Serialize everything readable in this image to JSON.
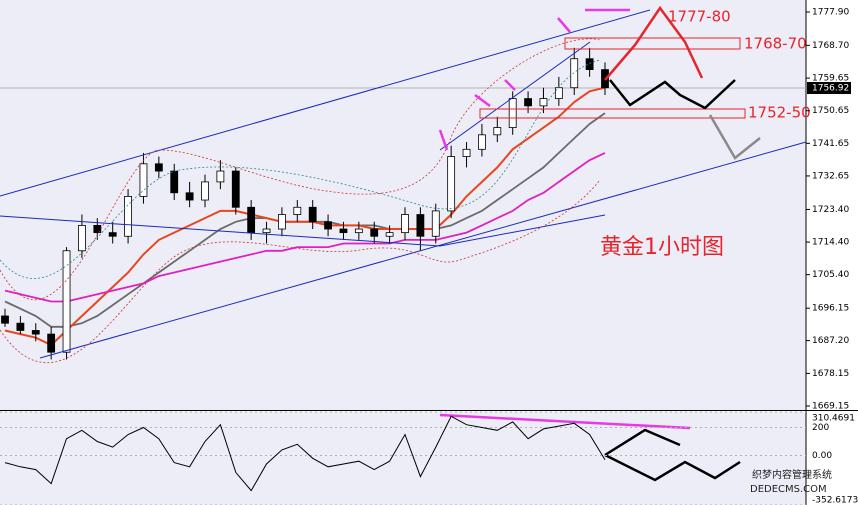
{
  "chart_data": {
    "type": "candlestick",
    "title": "黄金1小时图",
    "ylim": [
      1669.15,
      1777.9
    ],
    "yticks": [
      {
        "value": 1777.9,
        "label": "1777.90"
      },
      {
        "value": 1768.7,
        "label": "1768.70"
      },
      1759.65,
      {
        "value": 1750.65,
        "label": "1750.65"
      },
      {
        "value": 1741.65,
        "label": "1741.65"
      },
      {
        "value": 1732.65,
        "label": "1732.65"
      },
      {
        "value": 1723.4,
        "label": "1723.40"
      },
      {
        "value": 1714.4,
        "label": "1714.40"
      },
      {
        "value": 1705.4,
        "label": "1705.40"
      },
      1696.15,
      {
        "value": 1687.2,
        "label": "1687.20"
      },
      1678.15,
      1669.15
    ],
    "last_price": 1756.92,
    "open": [
      1694,
      1692,
      1690,
      1689,
      1684,
      1712,
      1719,
      1717,
      1716,
      1727,
      1736,
      1734,
      1728,
      1726,
      1731,
      1734,
      1724,
      1717,
      1718,
      1722,
      1724,
      1720,
      1718,
      1717,
      1718,
      1716,
      1717,
      1722,
      1716,
      1723,
      1738,
      1740,
      1744,
      1746,
      1754,
      1752,
      1754,
      1757,
      1765,
      1762
    ],
    "high": [
      1696,
      1694,
      1692,
      1691,
      1713,
      1722,
      1721,
      1720,
      1729,
      1739,
      1738,
      1736,
      1731,
      1733,
      1737,
      1735,
      1726,
      1720,
      1724,
      1726,
      1726,
      1722,
      1720,
      1720,
      1720,
      1719,
      1724,
      1724,
      1725,
      1741,
      1742,
      1747,
      1749,
      1756,
      1756,
      1757,
      1760,
      1768,
      1768,
      1764
    ],
    "low": [
      1691,
      1689,
      1687,
      1682,
      1682,
      1710,
      1715,
      1714,
      1714,
      1725,
      1732,
      1726,
      1724,
      1724,
      1729,
      1722,
      1715,
      1714,
      1716,
      1720,
      1718,
      1716,
      1715,
      1715,
      1714,
      1714,
      1715,
      1712,
      1714,
      1721,
      1735,
      1738,
      1742,
      1744,
      1750,
      1750,
      1752,
      1755,
      1760,
      1755
    ],
    "close": [
      1692,
      1690,
      1689,
      1684,
      1712,
      1719,
      1717,
      1716,
      1727,
      1736,
      1734,
      1728,
      1726,
      1731,
      1734,
      1724,
      1717,
      1718,
      1722,
      1724,
      1720,
      1718,
      1717,
      1718,
      1716,
      1717,
      1722,
      1716,
      1723,
      1738,
      1740,
      1744,
      1746,
      1754,
      1752,
      1754,
      1757,
      1765,
      1762,
      1757
    ],
    "lines": [
      {
        "color": "#6a6a6a",
        "values": [
          1698,
          1696,
          1694,
          1691,
          1691,
          1692,
          1694,
          1697,
          1700,
          1703,
          1706,
          1709,
          1712,
          1715,
          1718,
          1720,
          1721,
          1721,
          1720,
          1720,
          1720,
          1720,
          1719,
          1719,
          1719,
          1718,
          1718,
          1718,
          1718,
          1719,
          1721,
          1723,
          1726,
          1729,
          1732,
          1735,
          1739,
          1743,
          1747,
          1750
        ]
      },
      {
        "color": "#e8461e",
        "values": [
          1690,
          1689,
          1688,
          1686,
          1690,
          1694,
          1698,
          1702,
          1706,
          1711,
          1715,
          1717,
          1719,
          1721,
          1723,
          1723,
          1722,
          1721,
          1720,
          1720,
          1720,
          1719,
          1719,
          1719,
          1718,
          1718,
          1718,
          1718,
          1718,
          1722,
          1727,
          1731,
          1735,
          1740,
          1743,
          1746,
          1749,
          1753,
          1756,
          1757
        ]
      },
      {
        "color": "#e020c0",
        "values": [
          1701,
          1700,
          1699,
          1698,
          1698,
          1699,
          1700,
          1701,
          1702,
          1703,
          1705,
          1706,
          1707,
          1708,
          1709,
          1710,
          1711,
          1712,
          1712,
          1713,
          1713,
          1713,
          1714,
          1714,
          1714,
          1714,
          1715,
          1715,
          1715,
          1716,
          1717,
          1719,
          1721,
          1723,
          1726,
          1728,
          1731,
          1734,
          1737,
          1739
        ]
      }
    ],
    "oscillator": {
      "color": "#000000",
      "values": [
        -50,
        -80,
        -100,
        -200,
        120,
        180,
        100,
        60,
        150,
        200,
        120,
        -50,
        -80,
        100,
        220,
        -120,
        -250,
        -60,
        40,
        80,
        -20,
        -80,
        -60,
        -40,
        -100,
        -40,
        150,
        -150,
        60,
        280,
        220,
        200,
        180,
        240,
        120,
        190,
        210,
        230,
        150,
        -30
      ],
      "y2lim": [
        -352.6173,
        310.4691
      ],
      "y2ticks": [
        310.4691,
        200,
        {
          "value": 0,
          "label": "0.00"
        },
        -352.6173
      ]
    }
  },
  "annotations": [
    "1777-80",
    "1768-70",
    "1752-50"
  ],
  "watermark": [
    "织梦内容管理系统",
    "DEDECMS.COM"
  ]
}
